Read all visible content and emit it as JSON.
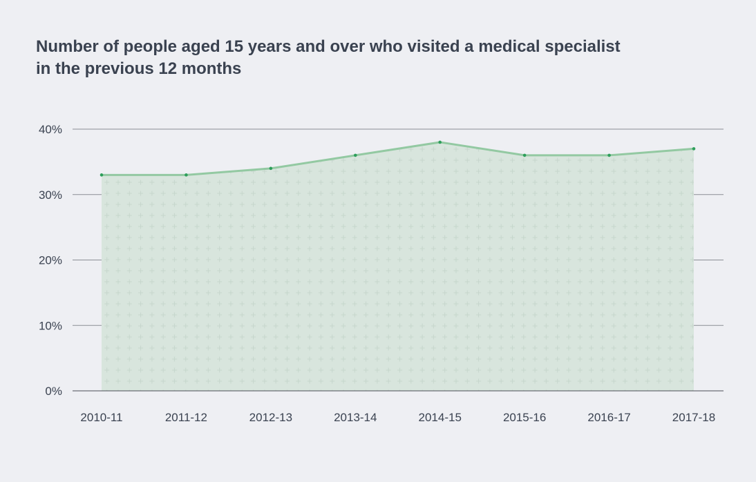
{
  "chart_data": {
    "type": "area",
    "title_lines": [
      "Number of people aged 15 years and over who visited a medical specialist",
      "in the previous 12 months"
    ],
    "categories": [
      "2010-11",
      "2011-12",
      "2012-13",
      "2013-14",
      "2014-15",
      "2015-16",
      "2016-17",
      "2017-18"
    ],
    "values": [
      33,
      33,
      34,
      36,
      38,
      36,
      36,
      37
    ],
    "unit": "%",
    "ylim": [
      0,
      40
    ],
    "yticks": [
      0,
      10,
      20,
      30,
      40
    ],
    "ytick_labels": [
      "0%",
      "10%",
      "20%",
      "30%",
      "40%"
    ],
    "grid": true,
    "colors": {
      "background": "#eeeff3",
      "fill": "#d8e5dd",
      "line": "#93c9a2",
      "marker": "#2e9e5b",
      "grid": "#8a8d94",
      "text": "#3a4250"
    }
  }
}
